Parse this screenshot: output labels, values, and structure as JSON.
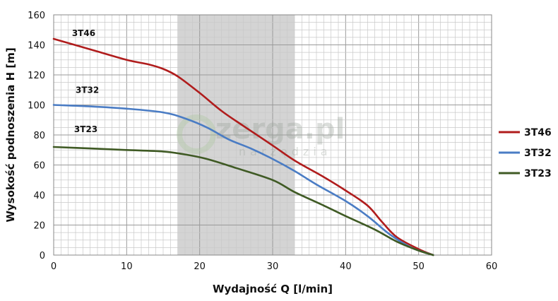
{
  "chart_data": {
    "type": "line",
    "title": "",
    "xlabel": "Wydajność Q [l/min]",
    "ylabel": "Wysokość podnoszenia H [m]",
    "xlim": [
      0,
      60
    ],
    "ylim": [
      0,
      160
    ],
    "x_ticks": [
      0,
      10,
      20,
      30,
      40,
      50,
      60
    ],
    "y_ticks": [
      0,
      20,
      40,
      60,
      80,
      100,
      120,
      140,
      160
    ],
    "grid": true,
    "legend_position": "right",
    "highlight_band": {
      "x_from": 17,
      "x_to": 33,
      "color": "#d4d4d4"
    },
    "series": [
      {
        "name": "3T46",
        "color": "#b01c1c",
        "points": [
          [
            0,
            144
          ],
          [
            5,
            137
          ],
          [
            10,
            130
          ],
          [
            13,
            127
          ],
          [
            15,
            124
          ],
          [
            17,
            119
          ],
          [
            20,
            108
          ],
          [
            23,
            96
          ],
          [
            26,
            86
          ],
          [
            30,
            73
          ],
          [
            33,
            63
          ],
          [
            37,
            52
          ],
          [
            40,
            43
          ],
          [
            43,
            33
          ],
          [
            45,
            22
          ],
          [
            47,
            12
          ],
          [
            50,
            4
          ],
          [
            52,
            0
          ]
        ]
      },
      {
        "name": "3T32",
        "color": "#4a7cc4",
        "points": [
          [
            0,
            100
          ],
          [
            5,
            99
          ],
          [
            10,
            97.5
          ],
          [
            15,
            95
          ],
          [
            18,
            91
          ],
          [
            21,
            85
          ],
          [
            24,
            77
          ],
          [
            27,
            71
          ],
          [
            30,
            64
          ],
          [
            33,
            56
          ],
          [
            36,
            47
          ],
          [
            40,
            36
          ],
          [
            43,
            26
          ],
          [
            46,
            14
          ],
          [
            49,
            5
          ],
          [
            52,
            0
          ]
        ]
      },
      {
        "name": "3T23",
        "color": "#3f5a24",
        "points": [
          [
            0,
            72
          ],
          [
            5,
            71
          ],
          [
            10,
            70
          ],
          [
            15,
            69
          ],
          [
            18,
            67
          ],
          [
            21,
            64
          ],
          [
            25,
            58
          ],
          [
            30,
            50
          ],
          [
            33,
            42
          ],
          [
            37,
            33
          ],
          [
            40,
            26
          ],
          [
            44,
            17
          ],
          [
            47,
            9
          ],
          [
            50,
            3
          ],
          [
            52,
            0
          ]
        ]
      }
    ],
    "annotations": [
      {
        "text": "3T46",
        "x": 2.5,
        "y": 146
      },
      {
        "text": "3T32",
        "x": 3,
        "y": 108
      },
      {
        "text": "3T23",
        "x": 2.8,
        "y": 82
      }
    ]
  },
  "watermark": {
    "main": "zerga.pl",
    "sub": "narzędzia"
  }
}
